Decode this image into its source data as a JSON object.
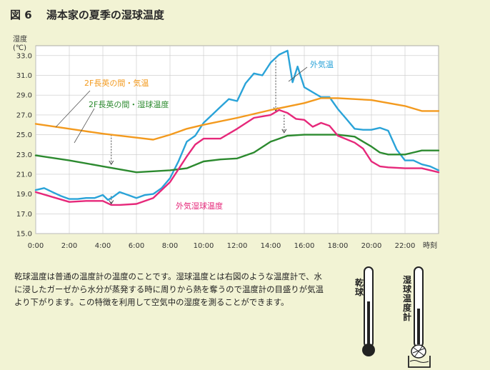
{
  "figure": {
    "title": "図 6　 湯本家の夏季の湿球温度",
    "caption": "乾球温度は普通の温度計の温度のことです。湿球温度とは右図のような温度計で、水に浸したガーゼから水分が蒸発する時に周りから熱を奪うので温度計の目盛りが気温より下がります。この特徴を利用して空気中の湿度を測ることができます。",
    "illustration_labels": {
      "dry_bulb": "乾球",
      "wet_bulb": "湿球温度計"
    }
  },
  "chart_data": {
    "type": "line",
    "title": "図 6　 湯本家の夏季の湿球温度",
    "ylabel": "湿度",
    "yunit": "(℃)",
    "xlabel": "時刻",
    "ylim": [
      15.0,
      34.0
    ],
    "xlim": [
      0,
      24
    ],
    "yticks": [
      "15.0",
      "17.0",
      "19.0",
      "21.0",
      "23.0",
      "25.0",
      "27.0",
      "29.0",
      "31.0",
      "33.0"
    ],
    "xticks": [
      "0:00",
      "2:00",
      "4:00",
      "6:00",
      "8:00",
      "10:00",
      "12:00",
      "14:00",
      "16:00",
      "18:00",
      "20:00",
      "22:00"
    ],
    "grid": true,
    "series": [
      {
        "name": "外気温",
        "color": "#2aa3d8",
        "x": [
          0,
          0.5,
          1,
          1.5,
          2,
          2.5,
          3,
          3.5,
          4,
          4.3,
          4.6,
          5,
          5.5,
          6,
          6.5,
          7,
          7.5,
          8,
          8.5,
          9,
          9.5,
          10,
          10.5,
          11,
          11.5,
          12,
          12.5,
          13,
          13.5,
          14,
          14.5,
          15,
          15.3,
          15.6,
          16,
          16.5,
          17,
          17.5,
          18,
          18.5,
          19,
          19.5,
          20,
          20.5,
          21,
          21.5,
          22,
          22.5,
          23,
          23.5,
          24
        ],
        "values": [
          19.4,
          19.6,
          19.2,
          18.8,
          18.5,
          18.5,
          18.6,
          18.6,
          18.9,
          18.4,
          18.7,
          19.2,
          18.9,
          18.6,
          18.9,
          19.0,
          19.6,
          20.6,
          22.3,
          24.3,
          24.9,
          26.2,
          27.0,
          27.8,
          28.6,
          28.4,
          30.2,
          31.2,
          31.0,
          32.3,
          33.1,
          33.5,
          30.3,
          31.9,
          29.8,
          29.3,
          28.8,
          28.8,
          27.6,
          26.6,
          25.6,
          25.5,
          25.5,
          25.7,
          25.4,
          23.5,
          22.4,
          22.4,
          22.0,
          21.8,
          21.4
        ]
      },
      {
        "name": "2F長英の間・気温",
        "color": "#f39a1e",
        "x": [
          0,
          2,
          4,
          6,
          7,
          8,
          9,
          10,
          12,
          14,
          16,
          17,
          18,
          20,
          22,
          23,
          24
        ],
        "values": [
          26.1,
          25.6,
          25.1,
          24.7,
          24.5,
          25.0,
          25.6,
          26.0,
          26.7,
          27.5,
          28.2,
          28.7,
          28.7,
          28.5,
          27.9,
          27.4,
          27.4
        ]
      },
      {
        "name": "2F長英の間・湿球温度",
        "color": "#2c8a2f",
        "x": [
          0,
          2,
          4,
          6,
          7,
          8,
          9,
          10,
          11,
          12,
          13,
          14,
          15,
          16,
          17,
          18,
          19,
          20,
          20.5,
          21,
          22,
          22.5,
          23,
          24
        ],
        "values": [
          22.9,
          22.4,
          21.8,
          21.2,
          21.3,
          21.4,
          21.6,
          22.3,
          22.5,
          22.6,
          23.2,
          24.3,
          24.9,
          25.0,
          25.0,
          25.0,
          24.8,
          23.8,
          23.2,
          23.0,
          23.0,
          23.2,
          23.4,
          23.4
        ]
      },
      {
        "name": "外気湿球温度",
        "color": "#e6287a",
        "x": [
          0,
          1,
          2,
          3,
          4,
          4.5,
          5,
          6,
          7,
          8,
          8.5,
          9,
          9.5,
          10,
          11,
          12,
          13,
          14,
          14.5,
          15,
          15.5,
          16,
          16.5,
          17,
          17.5,
          18,
          19,
          19.5,
          20,
          20.5,
          21,
          22,
          23,
          24
        ],
        "values": [
          19.2,
          18.7,
          18.2,
          18.3,
          18.3,
          17.9,
          17.9,
          18.0,
          18.6,
          20.2,
          21.5,
          22.8,
          24.0,
          24.6,
          24.6,
          25.6,
          26.7,
          27.0,
          27.5,
          27.2,
          26.6,
          26.5,
          25.8,
          26.2,
          25.9,
          24.9,
          24.2,
          23.6,
          22.3,
          21.8,
          21.7,
          21.6,
          21.6,
          21.2
        ]
      }
    ],
    "difference_markers": [
      {
        "x": 4.5,
        "from": 25.0,
        "to": 22.0
      },
      {
        "x": 4.5,
        "from": 18.8,
        "to": 18.0
      },
      {
        "x": 14.3,
        "from": 32.8,
        "to": 27.4
      },
      {
        "x": 14.8,
        "from": 27.0,
        "to": 25.2
      }
    ]
  }
}
